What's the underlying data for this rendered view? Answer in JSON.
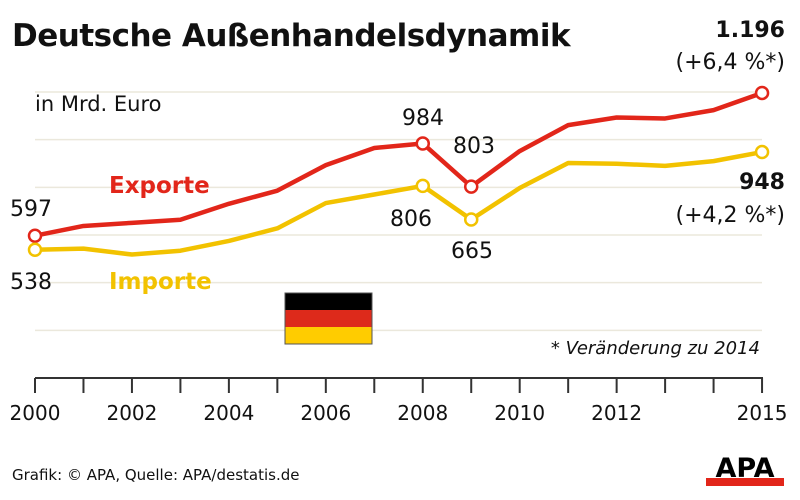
{
  "title": "Deutsche Außenhandelsdynamik",
  "unit": "in Mrd. Euro",
  "note": "* Veränderung zu 2014",
  "footer": "Grafik: © APA, Quelle: APA/destatis.de",
  "logo": "APA",
  "colors": {
    "exports": "#e2261a",
    "imports": "#f2c200",
    "grid": "#ebe8dc"
  },
  "chart_data": {
    "type": "line",
    "title": "Deutsche Außenhandelsdynamik",
    "ylabel": "in Mrd. Euro",
    "x": [
      2000,
      2001,
      2002,
      2003,
      2004,
      2005,
      2006,
      2007,
      2008,
      2009,
      2010,
      2011,
      2012,
      2013,
      2014,
      2015
    ],
    "xticks": [
      "2000",
      "2002",
      "2004",
      "2006",
      "2008",
      "2010",
      "2012",
      "2015"
    ],
    "ylim": [
      0,
      1200
    ],
    "grid": true,
    "series": [
      {
        "name": "Exporte",
        "values": [
          597,
          638,
          651,
          664,
          731,
          786,
          893,
          965,
          984,
          803,
          952,
          1061,
          1093,
          1089,
          1124,
          1196
        ]
      },
      {
        "name": "Importe",
        "values": [
          538,
          543,
          518,
          534,
          575,
          628,
          734,
          770,
          806,
          665,
          797,
          902,
          899,
          890,
          910,
          948
        ]
      }
    ],
    "annotations": {
      "exp_2000": "597",
      "exp_2008": "984",
      "exp_2009": "803",
      "exp_2015": "1.196",
      "exp_2015_change": "(+6,4 %*)",
      "imp_2000": "538",
      "imp_2008": "806",
      "imp_2009": "665",
      "imp_2015": "948",
      "imp_2015_change": "(+4,2 %*)"
    }
  }
}
